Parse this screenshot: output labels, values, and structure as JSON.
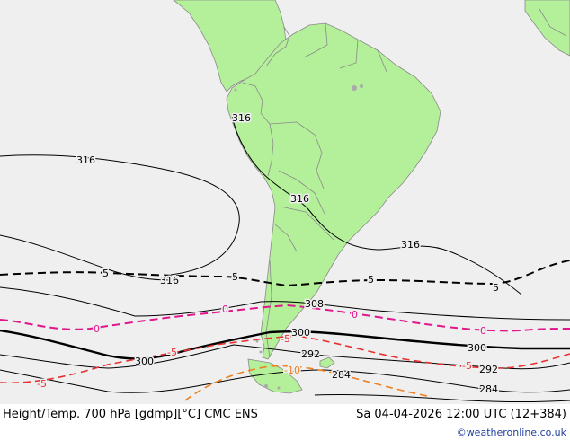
{
  "map": {
    "colors": {
      "ocean": "#efefef",
      "land": "#b4ef9a",
      "border": "#8a8a8a",
      "height_contour": "#000000",
      "temp_0": "#e0168c",
      "temp_minus5": "#e83030",
      "temp_minus10": "#ef8020"
    },
    "contour_labels": {
      "h316_west": "316",
      "h316_andes": "316",
      "h316_center": "316",
      "h316_east": "316",
      "h316_mid": "316",
      "h308": "308",
      "h300_west": "300",
      "h300_center": "300",
      "h300_east": "300",
      "h292_center": "292",
      "h292_east": "292",
      "h284_center": "284",
      "h284_east": "284",
      "t5_west": "5",
      "t5_center": "5",
      "t5_east": "5",
      "t5_far_east": "5",
      "t0_west": "0",
      "t0_center": "0",
      "t0_east": "0",
      "t0_far_east": "0",
      "tm5_west": "-5",
      "tm5_center": "-5",
      "tm5_mid": "-5",
      "tm5_east": "-5",
      "tm10": "-10"
    }
  },
  "footer": {
    "title": "Height/Temp. 700 hPa [gdmp][°C] CMC ENS",
    "valid_time": "Sa 04-04-2026 12:00 UTC (12+384)",
    "credit": "©weatheronline.co.uk"
  }
}
